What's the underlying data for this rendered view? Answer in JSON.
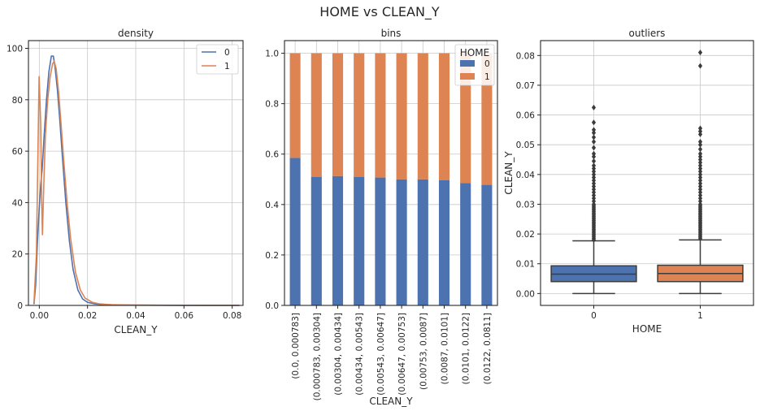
{
  "suptitle": "HOME   vs   CLEAN_Y",
  "colors": {
    "series0": "#4c72b0",
    "series1": "#dd8452",
    "box_line": "#3c3c3c"
  },
  "chart_data": [
    {
      "type": "line",
      "title": "density",
      "xlabel": "CLEAN_Y",
      "ylabel": "",
      "xlim": [
        -0.0045,
        0.0845
      ],
      "ylim": [
        0,
        103
      ],
      "xticks": [
        0.0,
        0.02,
        0.04,
        0.06,
        0.08
      ],
      "xtick_labels": [
        "0.00",
        "0.02",
        "0.04",
        "0.06",
        "0.08"
      ],
      "yticks": [
        0,
        20,
        40,
        60,
        80,
        100
      ],
      "grid": true,
      "legend": {
        "placement": "top-right",
        "entries": [
          "0",
          "1"
        ]
      },
      "series": [
        {
          "name": "0",
          "x": [
            -0.0022,
            -0.0015,
            -0.0008,
            0.0,
            0.0006,
            0.0012,
            0.002,
            0.003,
            0.004,
            0.005,
            0.0058,
            0.0065,
            0.0075,
            0.0085,
            0.0095,
            0.011,
            0.0125,
            0.014,
            0.016,
            0.018,
            0.02,
            0.023,
            0.026,
            0.03,
            0.035,
            0.04,
            0.05,
            0.06,
            0.07,
            0.083
          ],
          "y": [
            0.5,
            8,
            24,
            38,
            47,
            53,
            66,
            80,
            91,
            97,
            97,
            93,
            84,
            72,
            59,
            40,
            25,
            14,
            6,
            2.5,
            1.2,
            0.6,
            0.35,
            0.2,
            0.12,
            0.08,
            0.05,
            0.04,
            0.03,
            0.02
          ]
        },
        {
          "name": "1",
          "x": [
            -0.0022,
            -0.0012,
            -0.0004,
            -0.0001,
            0.0002,
            0.0006,
            0.001,
            0.0013,
            0.0018,
            0.0025,
            0.0035,
            0.0045,
            0.0055,
            0.0062,
            0.007,
            0.008,
            0.009,
            0.01,
            0.0115,
            0.013,
            0.015,
            0.017,
            0.019,
            0.022,
            0.025,
            0.03,
            0.035,
            0.04,
            0.05,
            0.06,
            0.07,
            0.083
          ],
          "y": [
            1,
            20,
            70,
            89,
            82,
            70,
            40,
            27.5,
            45,
            66,
            80,
            89,
            94,
            95,
            92,
            83,
            71,
            58,
            40,
            26,
            13,
            6,
            2.8,
            1.2,
            0.6,
            0.3,
            0.18,
            0.12,
            0.08,
            0.05,
            0.04,
            0.03
          ]
        }
      ]
    },
    {
      "type": "bar",
      "subtype": "stacked",
      "title": "bins",
      "xlabel": "CLEAN_Y",
      "ylabel": "",
      "ylim": [
        0,
        1.05
      ],
      "yticks": [
        0.0,
        0.2,
        0.4,
        0.6,
        0.8,
        1.0
      ],
      "ytick_labels": [
        "0.0",
        "0.2",
        "0.4",
        "0.6",
        "0.8",
        "1.0"
      ],
      "grid": true,
      "legend": {
        "placement": "top-right",
        "title": "HOME",
        "entries": [
          "0",
          "1"
        ]
      },
      "categories": [
        "(0.0, 0.000783]",
        "(0.000783, 0.00304]",
        "(0.00304, 0.00434]",
        "(0.00434, 0.00543]",
        "(0.00543, 0.00647]",
        "(0.00647, 0.00753]",
        "(0.00753, 0.0087]",
        "(0.0087, 0.0101]",
        "(0.0101, 0.0122]",
        "(0.0122, 0.0811]"
      ],
      "series": [
        {
          "name": "0",
          "values": [
            0.585,
            0.51,
            0.513,
            0.51,
            0.507,
            0.5,
            0.5,
            0.496,
            0.485,
            0.478
          ]
        },
        {
          "name": "1",
          "values": [
            0.415,
            0.49,
            0.487,
            0.49,
            0.493,
            0.5,
            0.5,
            0.504,
            0.515,
            0.522
          ]
        }
      ]
    },
    {
      "type": "box",
      "title": "outliers",
      "xlabel": "HOME",
      "ylabel": "CLEAN_Y",
      "ylim": [
        -0.004,
        0.085
      ],
      "yticks": [
        0.0,
        0.01,
        0.02,
        0.03,
        0.04,
        0.05,
        0.06,
        0.07,
        0.08
      ],
      "ytick_labels": [
        "0.00",
        "0.01",
        "0.02",
        "0.03",
        "0.04",
        "0.05",
        "0.06",
        "0.07",
        "0.08"
      ],
      "grid": true,
      "categories": [
        "0",
        "1"
      ],
      "boxes": [
        {
          "name": "0",
          "min": 0.0,
          "q1": 0.004,
          "median": 0.0065,
          "q3": 0.0093,
          "max": 0.0177,
          "outliers": [
            0.018,
            0.0185,
            0.019,
            0.0195,
            0.02,
            0.0205,
            0.021,
            0.0215,
            0.022,
            0.0225,
            0.023,
            0.0235,
            0.024,
            0.0245,
            0.025,
            0.0255,
            0.026,
            0.0265,
            0.027,
            0.0275,
            0.028,
            0.0285,
            0.029,
            0.0295,
            0.03,
            0.031,
            0.032,
            0.033,
            0.034,
            0.035,
            0.036,
            0.037,
            0.038,
            0.039,
            0.04,
            0.041,
            0.042,
            0.043,
            0.0445,
            0.046,
            0.047,
            0.049,
            0.051,
            0.0525,
            0.054,
            0.055,
            0.0575,
            0.0625
          ]
        },
        {
          "name": "1",
          "min": 0.0,
          "q1": 0.004,
          "median": 0.0067,
          "q3": 0.0095,
          "max": 0.018,
          "outliers": [
            0.0185,
            0.019,
            0.0195,
            0.02,
            0.0205,
            0.021,
            0.0215,
            0.022,
            0.0225,
            0.023,
            0.0235,
            0.024,
            0.0245,
            0.025,
            0.0255,
            0.026,
            0.0265,
            0.027,
            0.0275,
            0.028,
            0.0285,
            0.029,
            0.0295,
            0.03,
            0.031,
            0.032,
            0.033,
            0.034,
            0.035,
            0.036,
            0.037,
            0.038,
            0.039,
            0.04,
            0.041,
            0.042,
            0.043,
            0.044,
            0.045,
            0.046,
            0.047,
            0.0485,
            0.05,
            0.051,
            0.0535,
            0.0545,
            0.0555,
            0.0765,
            0.081
          ]
        }
      ]
    }
  ]
}
